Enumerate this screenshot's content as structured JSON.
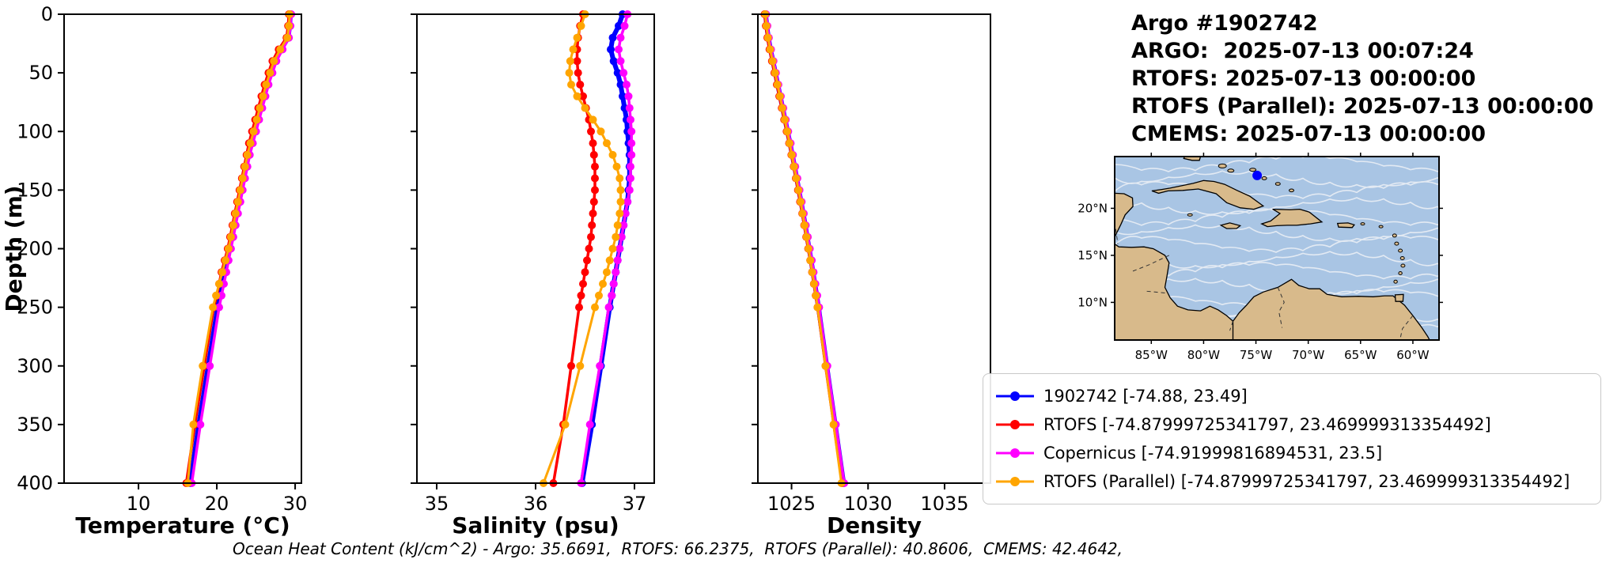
{
  "header": {
    "title": "Argo #1902742",
    "argo_line": "ARGO:  2025-07-13 00:07:24",
    "rtofs_line": "RTOFS: 2025-07-13 00:00:00",
    "rtofs_parallel_line": "RTOFS (Parallel): 2025-07-13 00:00:00",
    "cmems_line": "CMEMS: 2025-07-13 00:00:00"
  },
  "legend": {
    "items": [
      {
        "label": "1902742 [-74.88, 23.49]",
        "color": "#0000ff"
      },
      {
        "label": "RTOFS [-74.87999725341797, 23.469999313354492]",
        "color": "#ff0000"
      },
      {
        "label": "Copernicus [-74.91999816894531, 23.5]",
        "color": "#ff00ff"
      },
      {
        "label": "RTOFS (Parallel) [-74.87999725341797, 23.469999313354492]",
        "color": "#ffa500"
      }
    ]
  },
  "map": {
    "xtick_labels": [
      "85°W",
      "80°W",
      "75°W",
      "70°W",
      "65°W",
      "60°W"
    ],
    "xtick_lons": [
      -85,
      -80,
      -75,
      -70,
      -65,
      -60
    ],
    "ytick_labels": [
      "20°N",
      "15°N",
      "10°N"
    ],
    "ytick_lats": [
      20,
      15,
      10
    ],
    "marker": {
      "lon": -74.88,
      "lat": 23.49,
      "color": "#0000ff"
    },
    "ocean_color": "#a9c5e4",
    "land_color": "#d8ba8b",
    "streamline_color": "#e3eaf3"
  },
  "footer": {
    "text": "Ocean Heat Content (kJ/cm^2) - Argo: 35.6691,  RTOFS: 66.2375,  RTOFS (Parallel): 40.8606,  CMEMS: 42.4642,"
  },
  "chart_data": [
    {
      "type": "line",
      "name": "temperature-profile",
      "xlabel": "Temperature (°C)",
      "ylabel": "Depth (m)",
      "xlim": [
        0.5,
        30.8
      ],
      "xticks": [
        10,
        20,
        30
      ],
      "ylim": [
        0,
        400
      ],
      "yticks": [
        0,
        50,
        100,
        150,
        200,
        250,
        300,
        350,
        400
      ],
      "depths": [
        0,
        10,
        20,
        30,
        40,
        50,
        60,
        70,
        80,
        90,
        100,
        110,
        120,
        130,
        140,
        150,
        160,
        170,
        180,
        190,
        200,
        210,
        220,
        230,
        240,
        250,
        300,
        350,
        400
      ],
      "series": [
        {
          "name": "1902742",
          "color": "#0000ff",
          "values": [
            29.4,
            29.3,
            29.1,
            28.2,
            27.4,
            26.9,
            26.4,
            26.0,
            25.6,
            25.2,
            24.8,
            24.4,
            24.0,
            23.7,
            23.4,
            23.1,
            22.8,
            22.5,
            22.2,
            21.9,
            21.6,
            21.3,
            21.0,
            20.7,
            20.4,
            20.1,
            18.9,
            17.7,
            16.6
          ]
        },
        {
          "name": "RTOFS",
          "color": "#ff0000",
          "values": [
            29.2,
            29.1,
            28.9,
            27.9,
            27.1,
            26.6,
            26.1,
            25.7,
            25.3,
            24.9,
            24.5,
            24.1,
            23.8,
            23.5,
            23.2,
            22.9,
            22.6,
            22.3,
            22.0,
            21.7,
            21.4,
            21.0,
            20.6,
            20.3,
            20.0,
            19.6,
            18.4,
            17.2,
            16.1
          ]
        },
        {
          "name": "Copernicus",
          "color": "#ff00ff",
          "values": [
            29.5,
            29.4,
            29.2,
            28.4,
            27.6,
            27.1,
            26.6,
            26.2,
            25.8,
            25.4,
            25.0,
            24.6,
            24.2,
            23.9,
            23.6,
            23.3,
            23.0,
            22.7,
            22.4,
            22.1,
            21.8,
            21.5,
            21.2,
            20.9,
            20.6,
            20.3,
            19.1,
            17.9,
            16.8
          ]
        },
        {
          "name": "RTOFS (Parallel)",
          "color": "#ffa500",
          "values": [
            29.3,
            29.2,
            29.0,
            28.1,
            27.3,
            26.8,
            26.3,
            25.9,
            25.5,
            25.1,
            24.7,
            24.3,
            23.9,
            23.6,
            23.3,
            23.0,
            22.7,
            22.4,
            22.1,
            21.8,
            21.5,
            21.1,
            20.7,
            20.3,
            19.9,
            19.5,
            18.2,
            17.0,
            16.3
          ]
        }
      ]
    },
    {
      "type": "line",
      "name": "salinity-profile",
      "xlabel": "Salinity (psu)",
      "ylabel": "Depth (m)",
      "xlim": [
        34.8,
        37.2
      ],
      "xticks": [
        35,
        36,
        37
      ],
      "ylim": [
        0,
        400
      ],
      "yticks": [
        0,
        50,
        100,
        150,
        200,
        250,
        300,
        350,
        400
      ],
      "depths": [
        0,
        10,
        20,
        30,
        40,
        50,
        60,
        70,
        80,
        90,
        100,
        110,
        120,
        130,
        140,
        150,
        160,
        170,
        180,
        190,
        200,
        210,
        220,
        230,
        240,
        250,
        300,
        350,
        400
      ],
      "series": [
        {
          "name": "1902742",
          "color": "#0000ff",
          "values": [
            36.88,
            36.84,
            36.78,
            36.76,
            36.79,
            36.83,
            36.86,
            36.88,
            36.9,
            36.92,
            36.93,
            36.94,
            36.95,
            36.95,
            36.95,
            36.94,
            36.93,
            36.91,
            36.89,
            36.87,
            36.85,
            36.83,
            36.81,
            36.79,
            36.77,
            36.75,
            36.66,
            36.57,
            36.47
          ]
        },
        {
          "name": "RTOFS",
          "color": "#ff0000",
          "values": [
            36.48,
            36.45,
            36.43,
            36.42,
            36.42,
            36.43,
            36.45,
            36.48,
            36.51,
            36.54,
            36.56,
            36.58,
            36.59,
            36.6,
            36.6,
            36.6,
            36.59,
            36.58,
            36.57,
            36.56,
            36.54,
            36.52,
            36.5,
            36.48,
            36.46,
            36.44,
            36.36,
            36.28,
            36.18
          ]
        },
        {
          "name": "Copernicus",
          "color": "#ff00ff",
          "values": [
            36.93,
            36.9,
            36.86,
            36.84,
            36.86,
            36.89,
            36.92,
            36.94,
            36.95,
            36.96,
            36.97,
            36.97,
            36.97,
            36.96,
            36.96,
            36.95,
            36.93,
            36.91,
            36.89,
            36.87,
            36.85,
            36.83,
            36.81,
            36.79,
            36.77,
            36.74,
            36.65,
            36.55,
            36.46
          ]
        },
        {
          "name": "RTOFS (Parallel)",
          "color": "#ffa500",
          "values": [
            36.5,
            36.46,
            36.42,
            36.38,
            36.35,
            36.34,
            36.36,
            36.42,
            36.5,
            36.58,
            36.66,
            36.72,
            36.78,
            36.82,
            36.85,
            36.86,
            36.86,
            36.85,
            36.83,
            36.81,
            36.78,
            36.75,
            36.72,
            36.68,
            36.64,
            36.6,
            36.45,
            36.3,
            36.08
          ]
        }
      ]
    },
    {
      "type": "line",
      "name": "density-profile",
      "xlabel": "Density",
      "ylabel": "Depth (m)",
      "xlim": [
        1022.8,
        1038.0
      ],
      "xticks": [
        1025,
        1030,
        1035
      ],
      "ylim": [
        0,
        400
      ],
      "yticks": [
        0,
        50,
        100,
        150,
        200,
        250,
        300,
        350,
        400
      ],
      "depths": [
        0,
        10,
        20,
        30,
        40,
        50,
        60,
        70,
        80,
        90,
        100,
        110,
        120,
        130,
        140,
        150,
        160,
        170,
        180,
        190,
        200,
        210,
        220,
        230,
        240,
        250,
        300,
        350,
        400
      ],
      "series": [
        {
          "name": "1902742",
          "color": "#0000ff",
          "values": [
            1023.3,
            1023.38,
            1023.48,
            1023.62,
            1023.78,
            1023.94,
            1024.1,
            1024.26,
            1024.42,
            1024.58,
            1024.74,
            1024.9,
            1025.05,
            1025.2,
            1025.34,
            1025.48,
            1025.62,
            1025.76,
            1025.89,
            1026.02,
            1026.15,
            1026.28,
            1026.4,
            1026.52,
            1026.64,
            1026.76,
            1027.3,
            1027.85,
            1028.4
          ]
        },
        {
          "name": "RTOFS",
          "color": "#ff0000",
          "values": [
            1023.24,
            1023.32,
            1023.42,
            1023.56,
            1023.72,
            1023.88,
            1024.04,
            1024.2,
            1024.36,
            1024.52,
            1024.68,
            1024.84,
            1024.99,
            1025.14,
            1025.28,
            1025.42,
            1025.56,
            1025.7,
            1025.83,
            1025.96,
            1026.09,
            1026.22,
            1026.34,
            1026.46,
            1026.58,
            1026.7,
            1027.22,
            1027.76,
            1028.3
          ]
        },
        {
          "name": "Copernicus",
          "color": "#ff00ff",
          "values": [
            1023.34,
            1023.42,
            1023.52,
            1023.66,
            1023.82,
            1023.98,
            1024.14,
            1024.3,
            1024.46,
            1024.62,
            1024.78,
            1024.94,
            1025.09,
            1025.24,
            1025.38,
            1025.52,
            1025.66,
            1025.8,
            1025.93,
            1026.06,
            1026.19,
            1026.32,
            1026.44,
            1026.56,
            1026.68,
            1026.8,
            1027.34,
            1027.89,
            1028.44
          ]
        },
        {
          "name": "RTOFS (Parallel)",
          "color": "#ffa500",
          "values": [
            1023.28,
            1023.36,
            1023.46,
            1023.6,
            1023.76,
            1023.92,
            1024.08,
            1024.24,
            1024.4,
            1024.56,
            1024.72,
            1024.87,
            1025.02,
            1025.17,
            1025.31,
            1025.45,
            1025.59,
            1025.72,
            1025.85,
            1025.98,
            1026.11,
            1026.23,
            1026.35,
            1026.47,
            1026.59,
            1026.7,
            1027.22,
            1027.74,
            1028.26
          ]
        }
      ]
    }
  ]
}
